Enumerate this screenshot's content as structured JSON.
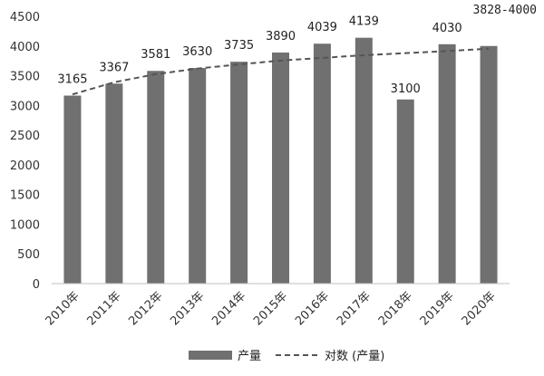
{
  "chart_data": {
    "type": "bar",
    "annotation": "3828-4000",
    "categories": [
      "2010年",
      "2011年",
      "2012年",
      "2013年",
      "2014年",
      "2015年",
      "2016年",
      "2017年",
      "2018年",
      "2019年",
      "2020年"
    ],
    "series": [
      {
        "name": "产量",
        "values": [
          3165,
          3367,
          3581,
          3630,
          3735,
          3890,
          4039,
          4139,
          3100,
          4030,
          4000
        ],
        "data_labels": [
          "3165",
          "3367",
          "3581",
          "3630",
          "3735",
          "3890",
          "4039",
          "4139",
          "3100",
          "4030",
          ""
        ],
        "color": "#707070"
      }
    ],
    "trendline": {
      "name": "对数 (产量)",
      "type": "logarithmic",
      "values": [
        3185,
        3390,
        3525,
        3620,
        3690,
        3755,
        3800,
        3845,
        3880,
        3915,
        3955
      ],
      "color": "#555555",
      "style": "dashed"
    },
    "ylim": [
      0,
      4500
    ],
    "yticks": [
      0,
      500,
      1000,
      1500,
      2000,
      2500,
      3000,
      3500,
      4000,
      4500
    ],
    "grid": false,
    "legend": "bottom"
  }
}
